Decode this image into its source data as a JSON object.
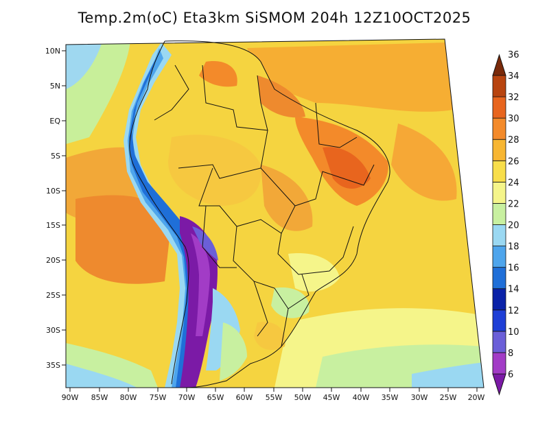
{
  "title": "Temp.2m(oC) Eta3km SiSMOM 204h 12Z10OCT2025",
  "map": {
    "lat_labels": [
      "10N",
      "5N",
      "EQ",
      "5S",
      "10S",
      "15S",
      "20S",
      "25S",
      "30S",
      "35S"
    ],
    "lon_labels": [
      "90W",
      "85W",
      "80W",
      "75W",
      "70W",
      "65W",
      "60W",
      "55W",
      "50W",
      "45W",
      "40W",
      "35W",
      "30W",
      "25W",
      "20W"
    ],
    "extent": {
      "lon": [
        -90,
        -20
      ],
      "lat": [
        -38,
        11
      ]
    },
    "variable": "2 m air temperature",
    "units": "oC"
  },
  "colorbar": {
    "levels": [
      "6",
      "8",
      "10",
      "12",
      "14",
      "16",
      "18",
      "20",
      "22",
      "24",
      "26",
      "28",
      "30",
      "32",
      "34",
      "36"
    ],
    "colors": [
      "#7b1aa6",
      "#a23cc6",
      "#6b5fd8",
      "#1e3fd6",
      "#0a22a8",
      "#1f6fd8",
      "#4ea5ec",
      "#9ad8f2",
      "#c8f0a0",
      "#f5f58a",
      "#f8de4a",
      "#f7b632",
      "#f38a2a",
      "#e8651e",
      "#b8440f",
      "#7a2a0a"
    ]
  }
}
